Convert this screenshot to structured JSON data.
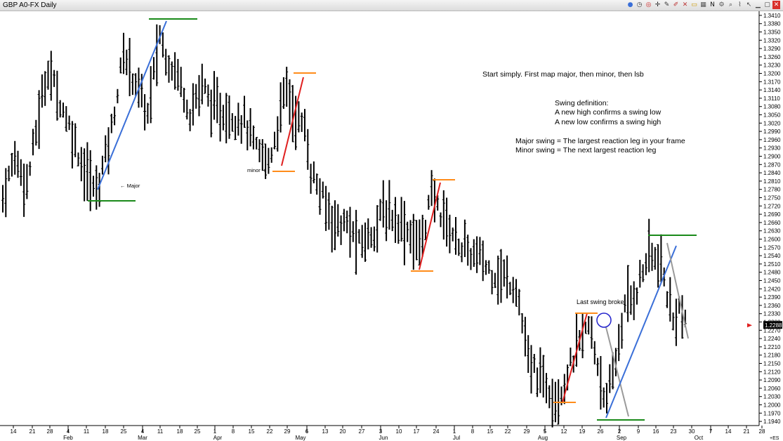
{
  "window": {
    "title": "GBP A0-FX Daily"
  },
  "toolbar": [
    {
      "name": "palette-icon",
      "glyph": "●",
      "color": "#3a6fd8"
    },
    {
      "name": "clock-icon",
      "glyph": "◷",
      "color": "#444"
    },
    {
      "name": "target-icon",
      "glyph": "◎",
      "color": "#c22"
    },
    {
      "name": "crosshair-icon",
      "glyph": "✛",
      "color": "#222"
    },
    {
      "name": "pen-icon",
      "glyph": "✎",
      "color": "#333"
    },
    {
      "name": "pencil-icon",
      "glyph": "✐",
      "color": "#b33"
    },
    {
      "name": "eraser-icon",
      "glyph": "✕",
      "color": "#b33"
    },
    {
      "name": "rectangle-icon",
      "glyph": "▭",
      "color": "#c90"
    },
    {
      "name": "grid-icon",
      "glyph": "▦",
      "color": "#555"
    },
    {
      "name": "newsletter-icon",
      "glyph": "N",
      "color": "#111"
    },
    {
      "name": "settings-icon",
      "glyph": "⚙",
      "color": "#555"
    },
    {
      "name": "zoom-icon",
      "glyph": "⌕",
      "color": "#444"
    },
    {
      "name": "chart-icon",
      "glyph": "⌇",
      "color": "#444"
    },
    {
      "name": "cursor-icon",
      "glyph": "↖",
      "color": "#444"
    },
    {
      "name": "minimize-icon",
      "glyph": "▁",
      "color": "#444"
    },
    {
      "name": "restore-icon",
      "glyph": "▢",
      "color": "#444"
    },
    {
      "name": "close-icon",
      "glyph": "✕",
      "color": "#fff"
    }
  ],
  "chart_data": {
    "type": "ohlc",
    "ylim": [
      1.1925,
      1.3425
    ],
    "yticks": [
      1.341,
      1.338,
      1.335,
      1.332,
      1.329,
      1.326,
      1.323,
      1.32,
      1.317,
      1.314,
      1.311,
      1.308,
      1.305,
      1.302,
      1.299,
      1.296,
      1.293,
      1.29,
      1.287,
      1.284,
      1.281,
      1.278,
      1.275,
      1.272,
      1.269,
      1.266,
      1.263,
      1.26,
      1.257,
      1.254,
      1.251,
      1.248,
      1.245,
      1.242,
      1.239,
      1.236,
      1.233,
      1.23,
      1.227,
      1.224,
      1.221,
      1.218,
      1.215,
      1.212,
      1.209,
      1.206,
      1.203,
      1.2,
      1.197,
      1.194
    ],
    "xticks": [
      "14",
      "21",
      "28",
      "4",
      "11",
      "18",
      "25",
      "4",
      "11",
      "18",
      "25",
      "1",
      "8",
      "15",
      "22",
      "29",
      "6",
      "13",
      "20",
      "27",
      "3",
      "10",
      "17",
      "24",
      "1",
      "8",
      "15",
      "22",
      "29",
      "5",
      "12",
      "19",
      "26",
      "2",
      "9",
      "16",
      "23",
      "30",
      "7",
      "14",
      "21",
      "28"
    ],
    "months": [
      "Feb",
      "Mar",
      "Apr",
      "May",
      "Jun",
      "Jul",
      "Aug",
      "Sep",
      "Oct"
    ],
    "last_price": "1.2288",
    "corner_label": "+ES",
    "waypoints": [
      [
        0,
        1.275
      ],
      [
        4,
        1.29
      ],
      [
        8,
        1.28
      ],
      [
        12,
        1.305
      ],
      [
        15,
        1.322
      ],
      [
        19,
        1.31
      ],
      [
        23,
        1.298
      ],
      [
        27,
        1.285
      ],
      [
        31,
        1.277
      ],
      [
        36,
        1.3
      ],
      [
        40,
        1.327
      ],
      [
        44,
        1.317
      ],
      [
        48,
        1.305
      ],
      [
        52,
        1.334
      ],
      [
        54,
        1.326
      ],
      [
        58,
        1.32
      ],
      [
        62,
        1.306
      ],
      [
        66,
        1.316
      ],
      [
        70,
        1.307
      ],
      [
        75,
        1.305
      ],
      [
        80,
        1.303
      ],
      [
        84,
        1.292
      ],
      [
        88,
        1.288
      ],
      [
        90,
        1.296
      ],
      [
        94,
        1.316
      ],
      [
        96,
        1.306
      ],
      [
        100,
        1.3
      ],
      [
        102,
        1.285
      ],
      [
        106,
        1.274
      ],
      [
        110,
        1.266
      ],
      [
        114,
        1.265
      ],
      [
        118,
        1.258
      ],
      [
        122,
        1.262
      ],
      [
        126,
        1.27
      ],
      [
        130,
        1.268
      ],
      [
        135,
        1.262
      ],
      [
        138,
        1.257
      ],
      [
        142,
        1.276
      ],
      [
        146,
        1.268
      ],
      [
        150,
        1.26
      ],
      [
        154,
        1.255
      ],
      [
        158,
        1.253
      ],
      [
        162,
        1.248
      ],
      [
        166,
        1.246
      ],
      [
        170,
        1.243
      ],
      [
        172,
        1.23
      ],
      [
        174,
        1.215
      ],
      [
        178,
        1.21
      ],
      [
        182,
        1.205
      ],
      [
        184,
        1.203
      ],
      [
        186,
        1.208
      ],
      [
        190,
        1.22
      ],
      [
        192,
        1.225
      ],
      [
        194,
        1.228
      ],
      [
        196,
        1.22
      ],
      [
        198,
        1.21
      ],
      [
        200,
        1.2
      ],
      [
        202,
        1.21
      ],
      [
        206,
        1.235
      ],
      [
        210,
        1.242
      ],
      [
        214,
        1.255
      ],
      [
        218,
        1.25
      ],
      [
        220,
        1.24
      ],
      [
        222,
        1.23
      ],
      [
        224,
        1.236
      ],
      [
        226,
        1.228
      ]
    ],
    "annotations": {
      "text_main": "Start simply. First map major, then minor, then lsb",
      "text_def_title": "Swing definition:",
      "text_def_1": "A new high confirms a swing low",
      "text_def_2": "A new low confirms a swing high",
      "text_major": "Major swing = The largest reaction leg in your frame",
      "text_minor": "Minor swing = The next largest reaction leg",
      "label_major": "← Major",
      "label_minor": "minor ➜",
      "label_broke": "Last swing broke"
    }
  },
  "colors": {
    "bars": "#000000",
    "blue": "#3a6fd8",
    "red": "#e02020",
    "green": "#1a8a1a",
    "orange": "#ff8c1a",
    "gray": "#9a9a9a",
    "circle": "#2222cc"
  }
}
